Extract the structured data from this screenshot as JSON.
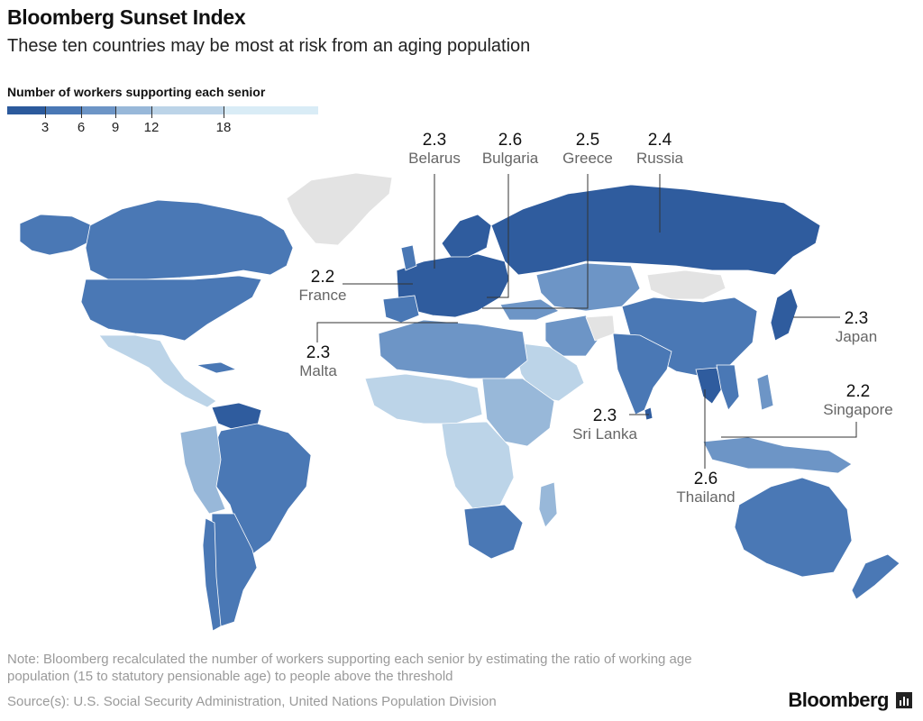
{
  "title": "Bloomberg Sunset Index",
  "subtitle": "These ten countries may be most at risk from an aging population",
  "legend": {
    "title": "Number of workers supporting each senior",
    "ticks": [
      "3",
      "6",
      "9",
      "12",
      "18"
    ],
    "colors": [
      "#2c5a9c",
      "#4a78b5",
      "#6d95c6",
      "#98b8d9",
      "#bcd4e8",
      "#d9ecf6"
    ]
  },
  "map_colors": {
    "dark": "#2f5c9e",
    "mid_dark": "#4a78b5",
    "mid": "#6d95c6",
    "light": "#98b8d9",
    "lighter": "#bcd4e8",
    "no_data": "#e3e3e3"
  },
  "callouts": [
    {
      "value": "2.3",
      "name": "Belarus"
    },
    {
      "value": "2.6",
      "name": "Bulgaria"
    },
    {
      "value": "2.5",
      "name": "Greece"
    },
    {
      "value": "2.4",
      "name": "Russia"
    },
    {
      "value": "2.2",
      "name": "France"
    },
    {
      "value": "2.3",
      "name": "Malta"
    },
    {
      "value": "2.3",
      "name": "Japan"
    },
    {
      "value": "2.2",
      "name": "Singapore"
    },
    {
      "value": "2.3",
      "name": "Sri Lanka"
    },
    {
      "value": "2.6",
      "name": "Thailand"
    }
  ],
  "note": "Note: Bloomberg recalculated the number of workers supporting each senior by estimating the ratio of working age population (15 to statutory pensionable age) to people above the threshold",
  "source": "Source(s): U.S. Social Security Administration, United Nations Population Division",
  "brand": "Bloomberg"
}
